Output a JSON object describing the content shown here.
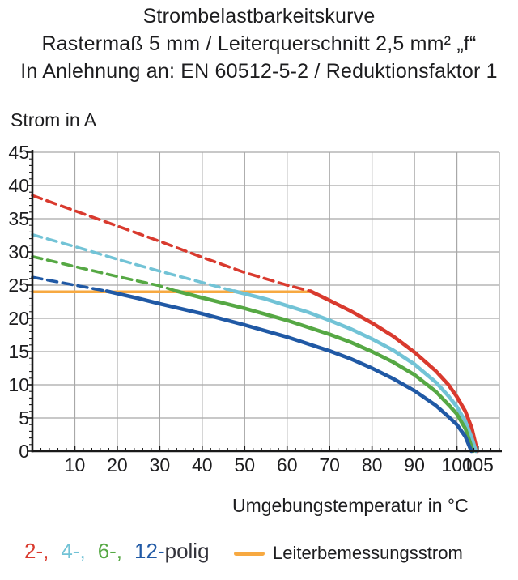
{
  "title": {
    "line1": "Strombelastbarkeitskurve",
    "line2": "Rastermaß 5 mm / Leiterquerschnitt 2,5 mm² „f“",
    "line3": "In Anlehnung an: EN 60512-5-2 / Reduktionsfaktor 1"
  },
  "chart_data": {
    "type": "line",
    "title": "Strombelastbarkeitskurve",
    "xlabel": "Umgebungstemperatur in °C",
    "ylabel": "Strom in A",
    "xlim": [
      0,
      110
    ],
    "ylim": [
      0,
      45
    ],
    "x_tick_labels": [
      10,
      20,
      30,
      40,
      50,
      60,
      70,
      80,
      90,
      100,
      105
    ],
    "y_tick_labels": [
      0,
      5,
      10,
      15,
      20,
      25,
      30,
      35,
      40,
      45
    ],
    "x_grid_step": 10,
    "y_grid_step": 5,
    "x_minor_tick_step": 2,
    "y_minor_tick_step": 1,
    "grid_color": "#a8a8a8",
    "axis_color": "#1a1a1a",
    "rated_current": {
      "label": "Leiterbemessungsstrom",
      "value_a": 24,
      "x_start_c": 0,
      "x_end_c": 65.5,
      "color": "#f7a941"
    },
    "series": [
      {
        "name": "2-polig",
        "poles": 2,
        "color": "#d93a2e",
        "dashed": [
          [
            0,
            38.5
          ],
          [
            10,
            36.2
          ],
          [
            20,
            33.9
          ],
          [
            30,
            31.6
          ],
          [
            40,
            29.2
          ],
          [
            50,
            26.9
          ],
          [
            60,
            25.0
          ],
          [
            65.5,
            24.1
          ]
        ],
        "solid": [
          [
            65.5,
            24.1
          ],
          [
            70,
            22.7
          ],
          [
            75,
            21.1
          ],
          [
            80,
            19.3
          ],
          [
            85,
            17.3
          ],
          [
            90,
            14.9
          ],
          [
            95,
            12.1
          ],
          [
            98,
            10.0
          ],
          [
            100,
            8.2
          ],
          [
            102,
            6.0
          ],
          [
            103.5,
            3.5
          ],
          [
            104.8,
            0
          ]
        ]
      },
      {
        "name": "4-polig",
        "poles": 4,
        "color": "#72c3d6",
        "dashed": [
          [
            0,
            32.6
          ],
          [
            10,
            30.8
          ],
          [
            20,
            28.9
          ],
          [
            30,
            27.1
          ],
          [
            40,
            25.4
          ],
          [
            47.5,
            24.1
          ]
        ],
        "solid": [
          [
            47.5,
            24.1
          ],
          [
            55,
            22.9
          ],
          [
            60,
            21.9
          ],
          [
            65,
            20.9
          ],
          [
            70,
            19.7
          ],
          [
            75,
            18.4
          ],
          [
            80,
            16.9
          ],
          [
            85,
            15.2
          ],
          [
            90,
            13.1
          ],
          [
            95,
            10.4
          ],
          [
            98,
            8.3
          ],
          [
            100,
            6.7
          ],
          [
            102,
            4.5
          ],
          [
            103.5,
            2.0
          ],
          [
            104.5,
            0
          ]
        ]
      },
      {
        "name": "6-polig",
        "poles": 6,
        "color": "#56a844",
        "dashed": [
          [
            0,
            29.3
          ],
          [
            10,
            27.8
          ],
          [
            20,
            26.3
          ],
          [
            30,
            24.9
          ],
          [
            34,
            24.1
          ]
        ],
        "solid": [
          [
            34,
            24.1
          ],
          [
            40,
            23.1
          ],
          [
            50,
            21.5
          ],
          [
            60,
            19.7
          ],
          [
            70,
            17.6
          ],
          [
            75,
            16.4
          ],
          [
            80,
            15.0
          ],
          [
            85,
            13.4
          ],
          [
            90,
            11.5
          ],
          [
            95,
            9.0
          ],
          [
            98,
            7.0
          ],
          [
            100,
            5.6
          ],
          [
            102,
            3.4
          ],
          [
            103.8,
            0
          ]
        ]
      },
      {
        "name": "12-polig",
        "poles": 12,
        "color": "#2059a5",
        "dashed": [
          [
            0,
            26.2
          ],
          [
            10,
            25.0
          ],
          [
            17.5,
            24.1
          ]
        ],
        "solid": [
          [
            17.5,
            24.1
          ],
          [
            25,
            23.0
          ],
          [
            30,
            22.2
          ],
          [
            40,
            20.7
          ],
          [
            50,
            19.0
          ],
          [
            60,
            17.2
          ],
          [
            70,
            15.1
          ],
          [
            75,
            13.9
          ],
          [
            80,
            12.5
          ],
          [
            85,
            10.9
          ],
          [
            90,
            9.1
          ],
          [
            95,
            6.9
          ],
          [
            98,
            5.2
          ],
          [
            100,
            4.0
          ],
          [
            102,
            2.2
          ],
          [
            103.4,
            0
          ]
        ]
      }
    ],
    "legend_position": "bottom"
  },
  "legend": {
    "items": [
      {
        "label": "2-,",
        "color": "#d93a2e"
      },
      {
        "label": "4-,",
        "color": "#72c3d6"
      },
      {
        "label": "6-,",
        "color": "#56a844"
      },
      {
        "label": "12-",
        "color": "#2059a5"
      }
    ],
    "suffix": "polig",
    "rated": {
      "label": "Leiterbemessungsstrom",
      "color": "#f7a941"
    }
  }
}
